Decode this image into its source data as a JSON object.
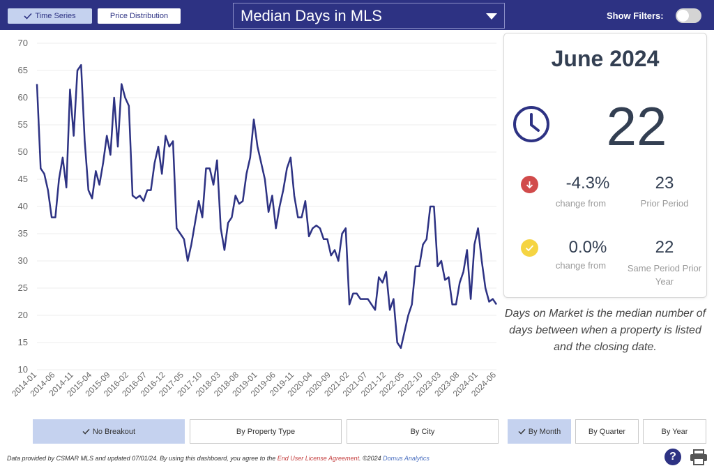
{
  "toolbar": {
    "tabs": [
      {
        "label": "Time Series",
        "active": true
      },
      {
        "label": "Price Distribution",
        "active": false
      }
    ],
    "metric": "Median Days in MLS",
    "filters_label": "Show Filters:",
    "filters_on": false
  },
  "kpi": {
    "period": "June 2024",
    "value": "22",
    "icon": "clock-icon",
    "rows": [
      {
        "delta": "-4.3%",
        "delta_label": "change from",
        "compare_value": "23",
        "compare_label": "Prior Period",
        "icon": "arrow-down-circle-icon"
      },
      {
        "delta": "0.0%",
        "delta_label": "change from",
        "compare_value": "22",
        "compare_label": "Same Period Prior Year",
        "icon": "check-circle-icon"
      }
    ]
  },
  "description": "Days on Market is the median number of days between when a property is listed and the closing date.",
  "breakdowns": [
    {
      "label": "No Breakout",
      "active": true
    },
    {
      "label": "By Property Type",
      "active": false
    },
    {
      "label": "By City",
      "active": false
    }
  ],
  "periods": [
    {
      "label": "By Month",
      "active": true
    },
    {
      "label": "By Quarter",
      "active": false
    },
    {
      "label": "By Year",
      "active": false
    }
  ],
  "footer": {
    "text1": "Data provided by CSMAR MLS and updated 07/01/24.  By using this dashboard, you agree to the ",
    "link1": "End User License Agreement",
    "text2": ".  ©2024 ",
    "link2": "Domus Analytics"
  },
  "colors": {
    "brand": "#2d3283",
    "line": "#2d3283",
    "active": "#c5d2ef"
  },
  "chart_data": {
    "type": "line",
    "x_tick_labels": [
      "2014-01",
      "2014-06",
      "2014-11",
      "2015-04",
      "2015-09",
      "2016-02",
      "2016-07",
      "2016-12",
      "2017-05",
      "2017-10",
      "2018-03",
      "2018-08",
      "2019-01",
      "2019-06",
      "2019-11",
      "2020-04",
      "2020-09",
      "2021-02",
      "2021-07",
      "2021-12",
      "2022-05",
      "2022-10",
      "2023-03",
      "2023-08",
      "2024-01",
      "2024-06"
    ],
    "x_start": "2014-01",
    "ylim": [
      10,
      70
    ],
    "yticks": [
      10,
      15,
      20,
      25,
      30,
      35,
      40,
      45,
      50,
      55,
      60,
      65,
      70
    ],
    "grid": true,
    "series": [
      {
        "values": [
          62.5,
          47,
          46,
          43,
          38,
          38,
          45,
          49,
          43.5,
          61.5,
          53,
          65,
          66,
          52,
          43,
          41.5,
          46.5,
          44,
          48,
          53,
          49.5,
          60,
          51,
          62.5,
          60,
          58.5,
          42,
          41.5,
          42,
          41,
          43,
          43,
          48,
          51,
          46,
          53,
          51,
          52,
          36,
          35,
          34,
          30,
          33,
          37,
          41,
          38,
          47,
          47,
          44,
          48.5,
          36,
          32,
          37,
          38,
          42,
          40.5,
          41,
          46,
          49,
          56,
          51,
          48,
          45,
          39,
          42,
          36,
          40,
          43,
          47,
          49,
          42,
          38,
          38,
          41,
          34.5,
          36,
          36.5,
          36,
          34,
          34,
          31,
          32,
          30,
          35,
          36,
          22,
          24,
          24,
          23,
          23,
          23,
          22,
          21,
          27,
          26,
          28,
          21,
          23,
          15,
          14,
          17,
          20,
          22,
          29,
          29,
          33,
          34,
          40,
          40,
          29,
          30,
          26.5,
          27,
          22,
          22,
          26,
          28,
          32,
          23,
          33,
          36,
          30,
          25,
          22.5,
          23,
          22
        ]
      }
    ]
  }
}
